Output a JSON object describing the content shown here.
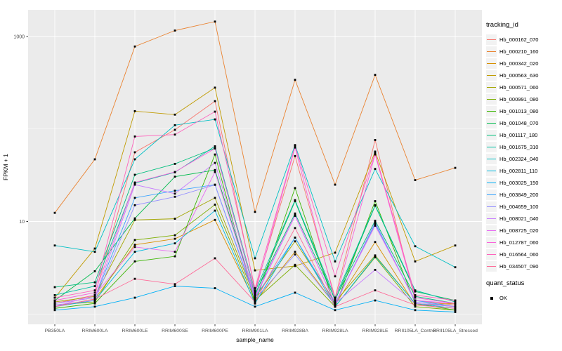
{
  "chart_data": {
    "type": "line",
    "title": "",
    "xlabel": "sample_name",
    "ylabel": "FPKM + 1",
    "yscale": "log10",
    "ylim": [
      1,
      1600
    ],
    "grid": true,
    "legend_position": "right",
    "panel_bg": "#EBEBEB",
    "grid_color": "#FFFFFF",
    "tick_label_color": "#4d4d4d",
    "point_color": "#000000",
    "y_major_ticks": [
      {
        "label": "1000",
        "value": 1000
      },
      {
        "label": "10",
        "value": 10
      }
    ],
    "y_minor_grid": [
      100,
      1
    ],
    "categories": [
      "PB350LA",
      "RRIM600LA",
      "RRIM600LE",
      "RRIM600SE",
      "RRIM600PE",
      "RRIM901LA",
      "RRIM928BA",
      "RRIM928LA",
      "RRIM928LE",
      "RRII105LA_Control",
      "RRII105LA_Stressed"
    ],
    "legend_title": "tracking_id",
    "point_legend": {
      "title": "quant_status",
      "items": [
        {
          "label": "OK"
        }
      ]
    },
    "series": [
      {
        "name": "Hb_000162_070",
        "color": "#F8766D",
        "values": [
          1.3,
          1.6,
          56,
          98,
          200,
          1.8,
          51,
          1.5,
          76,
          1.4,
          1.25
        ]
      },
      {
        "name": "Hb_000210_160",
        "color": "#EA8331",
        "values": [
          12.4,
          47,
          780,
          1160,
          1450,
          12.7,
          340,
          25,
          385,
          28,
          38
        ]
      },
      {
        "name": "Hb_000342_020",
        "color": "#D89000",
        "values": [
          1.2,
          1.45,
          5.6,
          6.5,
          10.4,
          1.35,
          4.7,
          1.25,
          6.0,
          1.25,
          1.3
        ]
      },
      {
        "name": "Hb_000563_630",
        "color": "#C09B00",
        "values": [
          1.5,
          5.1,
          156,
          143,
          280,
          2.96,
          3.3,
          4.6,
          57,
          3.7,
          5.5
        ]
      },
      {
        "name": "Hb_000571_060",
        "color": "#A3A500",
        "values": [
          1.35,
          1.55,
          10.4,
          10.7,
          18,
          1.5,
          6.1,
          1.35,
          4.3,
          1.3,
          1.2
        ]
      },
      {
        "name": "Hb_000991_080",
        "color": "#7CAE00",
        "values": [
          1.25,
          1.35,
          6.3,
          7.1,
          15.2,
          1.4,
          3.4,
          1.2,
          4.1,
          1.2,
          1.1
        ]
      },
      {
        "name": "Hb_001013_080",
        "color": "#39B600",
        "values": [
          1.15,
          1.3,
          3.7,
          4.2,
          53,
          1.3,
          23,
          1.2,
          16.6,
          1.3,
          1.1
        ]
      },
      {
        "name": "Hb_001048_070",
        "color": "#00BB4E",
        "values": [
          1.4,
          2.9,
          10.8,
          30.5,
          36,
          1.6,
          16.6,
          1.4,
          14.8,
          1.75,
          1.4
        ]
      },
      {
        "name": "Hb_001117_180",
        "color": "#00BF7D",
        "values": [
          1.95,
          2.2,
          32,
          42,
          62,
          1.65,
          12.2,
          1.45,
          10.2,
          1.55,
          1.3
        ]
      },
      {
        "name": "Hb_001675_310",
        "color": "#00C1A3",
        "values": [
          1.6,
          2.0,
          26,
          34,
          65,
          1.75,
          17,
          1.5,
          15,
          1.8,
          1.35
        ]
      },
      {
        "name": "Hb_002324_040",
        "color": "#00BFC4",
        "values": [
          5.5,
          4.7,
          47,
          110,
          127,
          4.0,
          67,
          3.7,
          37,
          5.4,
          3.2
        ]
      },
      {
        "name": "Hb_002811_110",
        "color": "#00BAE0",
        "values": [
          1.2,
          1.4,
          4.7,
          5.8,
          13.1,
          1.3,
          6.7,
          1.2,
          4.2,
          1.3,
          1.15
        ]
      },
      {
        "name": "Hb_003025_150",
        "color": "#00B0F6",
        "values": [
          1.1,
          1.2,
          1.5,
          2.0,
          1.9,
          1.2,
          1.7,
          1.1,
          1.4,
          1.1,
          1.05
        ]
      },
      {
        "name": "Hb_003849_200",
        "color": "#35A2FF",
        "values": [
          1.3,
          1.5,
          18,
          21.5,
          25,
          1.5,
          6.7,
          1.3,
          9.4,
          1.4,
          1.2
        ]
      },
      {
        "name": "Hb_004659_100",
        "color": "#9590FF",
        "values": [
          1.25,
          1.4,
          15,
          18.5,
          24.9,
          1.45,
          4.4,
          1.25,
          9.8,
          1.35,
          1.2
        ]
      },
      {
        "name": "Hb_008021_040",
        "color": "#C77CFF",
        "values": [
          1.3,
          1.5,
          25,
          20,
          43,
          1.55,
          11.7,
          1.3,
          3.0,
          1.3,
          1.2
        ]
      },
      {
        "name": "Hb_008725_020",
        "color": "#E76BF3",
        "values": [
          1.2,
          1.6,
          5.3,
          4.7,
          34.3,
          1.5,
          11.5,
          1.3,
          9.0,
          1.4,
          1.3
        ]
      },
      {
        "name": "Hb_012787_060",
        "color": "#FA62DB",
        "values": [
          1.4,
          1.7,
          26.4,
          34.3,
          61.6,
          1.7,
          63,
          1.4,
          53,
          1.5,
          1.3
        ]
      },
      {
        "name": "Hb_016564_060",
        "color": "#FF62BC",
        "values": [
          1.5,
          1.8,
          83,
          87,
          154,
          1.9,
          65,
          2.55,
          55,
          1.6,
          1.4
        ]
      },
      {
        "name": "Hb_034507_090",
        "color": "#FF6A98",
        "values": [
          1.2,
          1.45,
          2.4,
          2.1,
          4.0,
          1.35,
          8.5,
          1.2,
          1.8,
          1.25,
          1.15
        ]
      }
    ]
  }
}
